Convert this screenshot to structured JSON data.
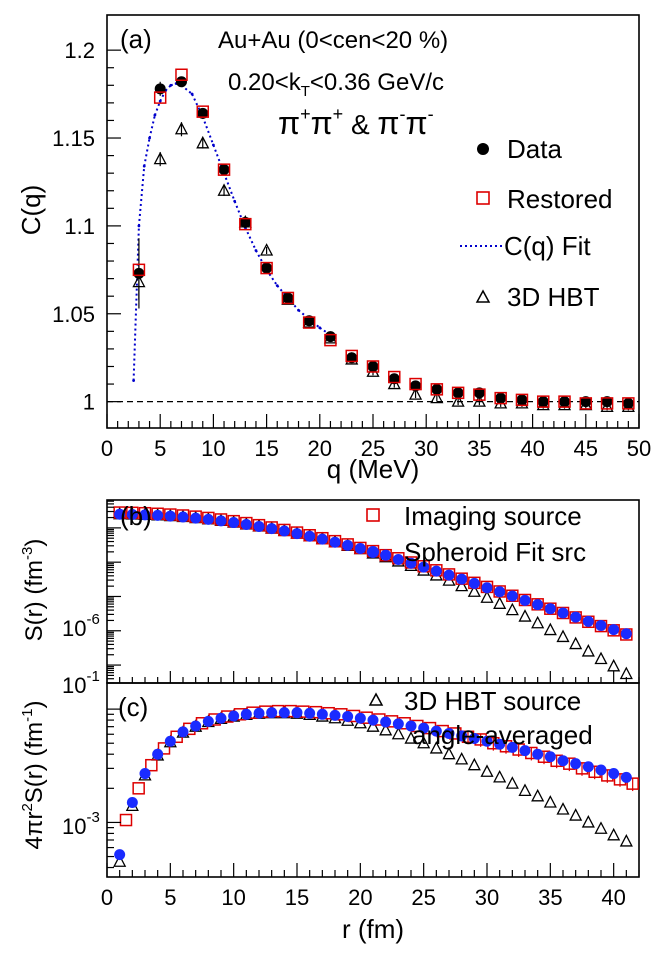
{
  "colors": {
    "data": "#000000",
    "restored": "#dd0000",
    "fit": "#0000cc",
    "hbt": "#000000",
    "spheroid": "#1a2bff",
    "imaging": "#dd0000"
  },
  "chart_data": [
    {
      "type": "scatter",
      "panel_label": "(a)",
      "annotations": [
        "Au+Au (0<cen<20 %)"
      ],
      "kt_label": {
        "pre": "0.20<k",
        "sub": "T",
        "post": "<0.36 GeV/c"
      },
      "pion_label": {
        "p1": "π",
        "s1": "+",
        "p2": "π",
        "s2": "+",
        "amp": " & ",
        "p3": "π",
        "s3": "-",
        "p4": "π",
        "s4": "-"
      },
      "xlabel": "q (MeV)",
      "ylabel": "C(q)",
      "xlim": [
        0,
        50
      ],
      "ylim": [
        0.985,
        1.22
      ],
      "xticks": [
        "0",
        "5",
        "10",
        "15",
        "20",
        "25",
        "30",
        "35",
        "40",
        "45",
        "50"
      ],
      "yticks": [
        "1",
        "1.05",
        "1.1",
        "1.15",
        "1.2"
      ],
      "xtick_values": [
        0,
        5,
        10,
        15,
        20,
        25,
        30,
        35,
        40,
        45,
        50
      ],
      "ytick_values": [
        1.0,
        1.05,
        1.1,
        1.15,
        1.2
      ],
      "reference_line": 1.0,
      "legend": {
        "position": "right",
        "entries": [
          "Data",
          "Restored",
          "C(q) Fit",
          "3D HBT"
        ]
      },
      "series": [
        {
          "name": "Data",
          "marker": "circle",
          "x": [
            3,
            5,
            7,
            9,
            11,
            13,
            15,
            17,
            19,
            21,
            23,
            25,
            27,
            29,
            31,
            33,
            35,
            37,
            39,
            41,
            43,
            45,
            47,
            49
          ],
          "y": [
            1.073,
            1.178,
            1.182,
            1.164,
            1.132,
            1.102,
            1.076,
            1.059,
            1.046,
            1.037,
            1.025,
            1.02,
            1.013,
            1.009,
            1.007,
            1.005,
            1.005,
            1.002,
            1.001,
            1.0,
            1.0,
            1.0,
            1.0,
            0.999
          ],
          "err": [
            0.02,
            0.004,
            0.003,
            0.003,
            0.002,
            0.002,
            0.002,
            0.002,
            0.002,
            0.002,
            0.002,
            0.002,
            0.002,
            0.002,
            0.002,
            0.002,
            0.002,
            0.002,
            0.002,
            0.002,
            0.002,
            0.002,
            0.002,
            0.002
          ]
        },
        {
          "name": "Restored",
          "marker": "open-square",
          "x": [
            3,
            5,
            7,
            9,
            11,
            13,
            15,
            17,
            19,
            21,
            23,
            25,
            27,
            29,
            31,
            33,
            35,
            37,
            39,
            41,
            43,
            45,
            47,
            49
          ],
          "y": [
            1.075,
            1.173,
            1.186,
            1.165,
            1.132,
            1.101,
            1.076,
            1.059,
            1.045,
            1.035,
            1.026,
            1.02,
            1.014,
            1.01,
            1.007,
            1.005,
            1.004,
            1.002,
            1.001,
            1.0,
            1.0,
            0.999,
            0.999,
            0.999
          ]
        },
        {
          "name": "C(q) Fit",
          "marker": "dotted-line",
          "x": [
            2.5,
            3,
            3.5,
            4,
            4.5,
            5,
            5.5,
            6,
            6.5,
            7,
            8,
            9,
            10,
            11,
            12,
            13,
            14,
            15,
            16,
            17,
            18,
            19,
            20,
            21
          ],
          "y": [
            1.012,
            1.1,
            1.134,
            1.15,
            1.163,
            1.171,
            1.177,
            1.18,
            1.181,
            1.18,
            1.175,
            1.162,
            1.146,
            1.13,
            1.114,
            1.099,
            1.086,
            1.075,
            1.066,
            1.059,
            1.052,
            1.047,
            1.042,
            1.038
          ]
        },
        {
          "name": "3D HBT",
          "marker": "open-triangle",
          "x": [
            3,
            5,
            7,
            9,
            11,
            13,
            15,
            17,
            19,
            21,
            23,
            25,
            27,
            29,
            31,
            33,
            35,
            37,
            39,
            41,
            43,
            45,
            47,
            49
          ],
          "y": [
            1.068,
            1.138,
            1.155,
            1.147,
            1.12,
            1.102,
            1.086,
            1.058,
            1.045,
            1.036,
            1.024,
            1.017,
            1.01,
            1.004,
            1.002,
            1.0,
            1.0,
            0.999,
            0.999,
            0.998,
            0.998,
            0.998,
            0.997,
            0.997
          ],
          "err": [
            0.01,
            0.004,
            0.004,
            0.003,
            0.003,
            0.002,
            0.002,
            0.002,
            0.002,
            0.002,
            0.002,
            0.002,
            0.002,
            0.002,
            0.002,
            0.002,
            0.002,
            0.002,
            0.002,
            0.002,
            0.002,
            0.002,
            0.002,
            0.002
          ]
        }
      ]
    },
    {
      "type": "scatter",
      "panel_label": "(b)",
      "ylabel": "S(r)  (fm",
      "ylabel_sup": "-3",
      "ylabel_close": ")",
      "yscale": "log",
      "ytick_labels": [
        {
          "base": "10",
          "exp": "-6"
        },
        {
          "base": "10",
          "exp": "-1"
        }
      ],
      "legend": {
        "position": "top-right",
        "entries": [
          "Imaging source",
          "Spheroid Fit src"
        ]
      },
      "xlim": [
        0,
        42
      ],
      "series": [
        {
          "name": "Imaging source",
          "marker": "open-square",
          "x": [
            1,
            2,
            3,
            4,
            5,
            6,
            7,
            8,
            9,
            10,
            11,
            12,
            13,
            14,
            15,
            16,
            17,
            18,
            19,
            20,
            21,
            22,
            23,
            24,
            25,
            26,
            27,
            28,
            29,
            30,
            31,
            32,
            33,
            34,
            35,
            36,
            37,
            38,
            39,
            40,
            41
          ],
          "y": [
            0.028,
            0.0275,
            0.0268,
            0.0258,
            0.0245,
            0.023,
            0.0213,
            0.0195,
            0.0176,
            0.0157,
            0.0138,
            0.012,
            0.0103,
            0.0087,
            0.0073,
            0.0061,
            0.005,
            0.0041,
            0.0033,
            0.0026,
            0.0021,
            0.0016,
            0.0013,
            0.00098,
            0.00076,
            0.00058,
            0.00044,
            0.00033,
            0.00025,
            0.00019,
            0.00014,
            0.000105,
            7.9e-05,
            5.9e-05,
            4.4e-05,
            3.3e-05,
            2.45e-05,
            1.83e-05,
            1.37e-05,
            1.03e-05,
            7.8e-06
          ]
        },
        {
          "name": "Spheroid Fit src",
          "marker": "circle",
          "x": [
            1,
            2,
            3,
            4,
            5,
            6,
            7,
            8,
            9,
            10,
            11,
            12,
            13,
            14,
            15,
            16,
            17,
            18,
            19,
            20,
            21,
            22,
            23,
            24,
            25,
            26,
            27,
            28,
            29,
            30,
            31,
            32,
            33,
            34,
            35,
            36,
            37,
            38,
            39,
            40,
            41
          ],
          "y": [
            0.025,
            0.0246,
            0.024,
            0.0232,
            0.0221,
            0.0208,
            0.0193,
            0.0177,
            0.016,
            0.0143,
            0.0126,
            0.011,
            0.0095,
            0.0081,
            0.0068,
            0.0057,
            0.0047,
            0.0038,
            0.0031,
            0.0025,
            0.002,
            0.0016,
            0.0012,
            0.00093,
            0.00072,
            0.00055,
            0.00042,
            0.00032,
            0.00024,
            0.00018,
            0.000137,
            0.000103,
            7.7e-05,
            5.8e-05,
            4.4e-05,
            3.3e-05,
            2.5e-05,
            1.88e-05,
            1.42e-05,
            1.08e-05,
            8.2e-06
          ]
        },
        {
          "name": "3D HBT source",
          "marker": "open-triangle",
          "x": [
            1,
            2,
            3,
            4,
            5,
            6,
            7,
            8,
            9,
            10,
            11,
            12,
            13,
            14,
            15,
            16,
            17,
            18,
            19,
            20,
            21,
            22,
            23,
            24,
            25,
            26,
            27,
            28,
            29,
            30,
            31,
            32,
            33,
            34,
            35,
            36,
            37,
            38,
            39,
            40,
            41
          ],
          "y": [
            0.025,
            0.0246,
            0.024,
            0.0232,
            0.0221,
            0.0208,
            0.0193,
            0.0177,
            0.016,
            0.0143,
            0.0126,
            0.011,
            0.0095,
            0.0081,
            0.0068,
            0.0057,
            0.0047,
            0.0038,
            0.003,
            0.0024,
            0.0018,
            0.0014,
            0.00105,
            0.00078,
            0.00057,
            0.00041,
            0.00029,
            0.0002,
            0.000137,
            9.2e-05,
            6.1e-05,
            4e-05,
            2.6e-05,
            1.66e-05,
            1.05e-05,
            6.6e-06,
            4.1e-06,
            2.5e-06,
            1.5e-06,
            9.2e-07,
            5.5e-07
          ]
        }
      ]
    },
    {
      "type": "scatter",
      "panel_label": "(c)",
      "xlabel": "r (fm)",
      "ylabel_parts": {
        "a": "4πr",
        "a_sup": "2",
        "b": "S(r)  (fm",
        "b_sup": "-1",
        "c": ")"
      },
      "yscale": "log",
      "ytick_labels": [
        {
          "base": "10",
          "exp": "-3"
        }
      ],
      "xlim": [
        0,
        42
      ],
      "xticks": [
        "0",
        "5",
        "10",
        "15",
        "20",
        "25",
        "30",
        "35",
        "40"
      ],
      "xtick_values": [
        0,
        5,
        10,
        15,
        20,
        25,
        30,
        35,
        40
      ],
      "legend": {
        "position": "top-right",
        "entries": [
          "3D HBT source",
          "angle-averaged"
        ]
      },
      "series": [
        {
          "name": "Imaging source",
          "marker": "open-square",
          "x": [
            1.5,
            2.5,
            3.5,
            4.5,
            5.5,
            6.5,
            7.5,
            8.5,
            9.5,
            10.5,
            11.5,
            12.5,
            13.5,
            14.5,
            15.5,
            16.5,
            17.5,
            18.5,
            19.5,
            20.5,
            21.5,
            22.5,
            23.5,
            24.5,
            25.5,
            26.5,
            27.5,
            28.5,
            29.5,
            30.5,
            31.5,
            32.5,
            33.5,
            34.5,
            35.5,
            36.5,
            37.5,
            38.5,
            39.5,
            40.5,
            41.5
          ],
          "y": [
            0.00105,
            0.002,
            0.0032,
            0.0045,
            0.0057,
            0.0067,
            0.0075,
            0.0081,
            0.0086,
            0.009,
            0.0093,
            0.0095,
            0.0096,
            0.0096,
            0.0095,
            0.0094,
            0.0092,
            0.009,
            0.0087,
            0.0084,
            0.0081,
            0.0078,
            0.0075,
            0.0071,
            0.0068,
            0.0064,
            0.0061,
            0.0057,
            0.0054,
            0.005,
            0.0047,
            0.0044,
            0.0041,
            0.0038,
            0.0035,
            0.0033,
            0.003,
            0.0028,
            0.0026,
            0.0024,
            0.0022
          ]
        },
        {
          "name": "Spheroid Fit src",
          "marker": "circle",
          "x": [
            1,
            2,
            3,
            4,
            5,
            6,
            7,
            8,
            9,
            10,
            11,
            12,
            13,
            14,
            15,
            16,
            17,
            18,
            19,
            20,
            21,
            22,
            23,
            24,
            25,
            26,
            27,
            28,
            29,
            30,
            31,
            32,
            33,
            34,
            35,
            36,
            37,
            38,
            39,
            40,
            41
          ],
          "y": [
            0.00052,
            0.0015,
            0.0027,
            0.004,
            0.0052,
            0.0063,
            0.0071,
            0.0078,
            0.0083,
            0.0087,
            0.009,
            0.0092,
            0.0093,
            0.0093,
            0.0093,
            0.0092,
            0.009,
            0.0088,
            0.0086,
            0.0083,
            0.008,
            0.0077,
            0.0074,
            0.0071,
            0.0068,
            0.0064,
            0.0061,
            0.0058,
            0.0055,
            0.0052,
            0.0049,
            0.0046,
            0.0043,
            0.004,
            0.0038,
            0.0035,
            0.0033,
            0.0031,
            0.0029,
            0.0027,
            0.0025
          ]
        },
        {
          "name": "3D HBT source",
          "marker": "open-triangle",
          "x": [
            1,
            2,
            3,
            4,
            5,
            6,
            7,
            8,
            9,
            10,
            11,
            12,
            13,
            14,
            15,
            16,
            17,
            18,
            19,
            20,
            21,
            22,
            23,
            24,
            25,
            26,
            27,
            28,
            29,
            30,
            31,
            32,
            33,
            34,
            35,
            36,
            37,
            38,
            39,
            40,
            41
          ],
          "y": [
            0.00045,
            0.0014,
            0.0026,
            0.0039,
            0.0051,
            0.0062,
            0.007,
            0.0077,
            0.0082,
            0.0086,
            0.0089,
            0.0091,
            0.0092,
            0.0092,
            0.0091,
            0.0089,
            0.0086,
            0.0083,
            0.0079,
            0.0075,
            0.007,
            0.0065,
            0.006,
            0.0055,
            0.005,
            0.0045,
            0.004,
            0.0036,
            0.0032,
            0.0028,
            0.0025,
            0.0022,
            0.0019,
            0.0017,
            0.0015,
            0.0013,
            0.00115,
            0.001,
            0.00088,
            0.00077,
            0.00068
          ]
        }
      ]
    }
  ]
}
